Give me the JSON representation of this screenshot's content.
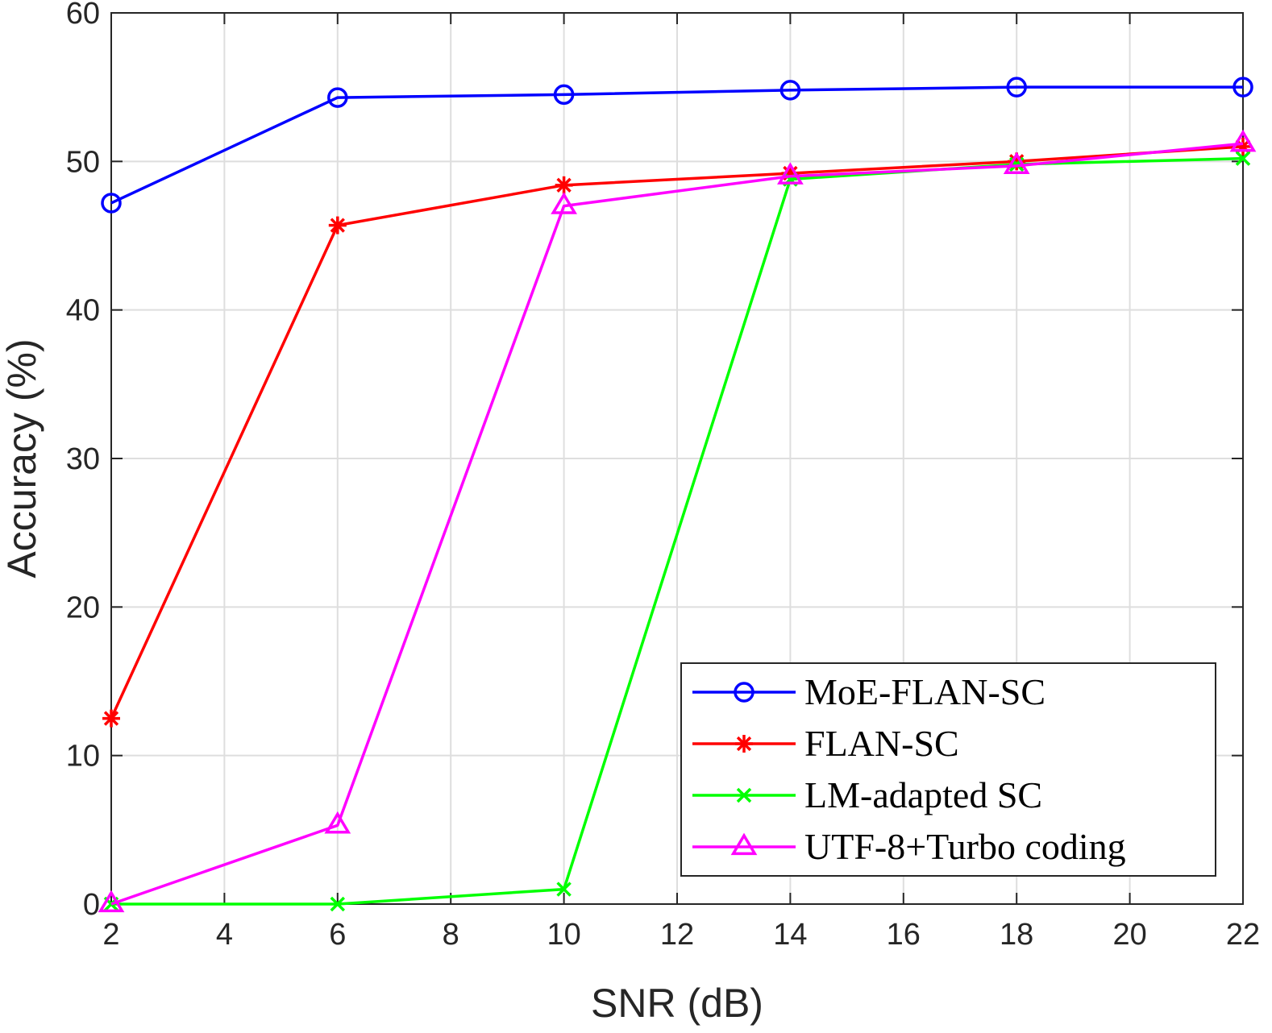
{
  "chart_data": {
    "type": "line",
    "title": "",
    "xlabel": "SNR (dB)",
    "ylabel": "Accuracy (%)",
    "xlim": [
      2,
      22
    ],
    "ylim": [
      0,
      60
    ],
    "xticks": [
      2,
      4,
      6,
      8,
      10,
      12,
      14,
      16,
      18,
      20,
      22
    ],
    "yticks": [
      0,
      10,
      20,
      30,
      40,
      50,
      60
    ],
    "grid": true,
    "legend_position": "bottom-right",
    "x": [
      2,
      6,
      10,
      14,
      18,
      22
    ],
    "series": [
      {
        "name": "MoE-FLAN-SC",
        "color": "#0000ff",
        "marker": "circle",
        "values": [
          47.2,
          54.3,
          54.5,
          54.8,
          55.0,
          55.0
        ]
      },
      {
        "name": "FLAN-SC",
        "color": "#ff0000",
        "marker": "asterisk",
        "values": [
          12.5,
          45.7,
          48.4,
          49.2,
          50.0,
          51.0
        ]
      },
      {
        "name": "LM-adapted SC",
        "color": "#00ff00",
        "marker": "x",
        "values": [
          0.0,
          0.0,
          1.0,
          48.8,
          49.8,
          50.2
        ]
      },
      {
        "name": "UTF-8+Turbo coding",
        "color": "#ff00ff",
        "marker": "triangle",
        "values": [
          0.0,
          5.3,
          47.0,
          49.0,
          49.7,
          51.2
        ]
      }
    ]
  }
}
